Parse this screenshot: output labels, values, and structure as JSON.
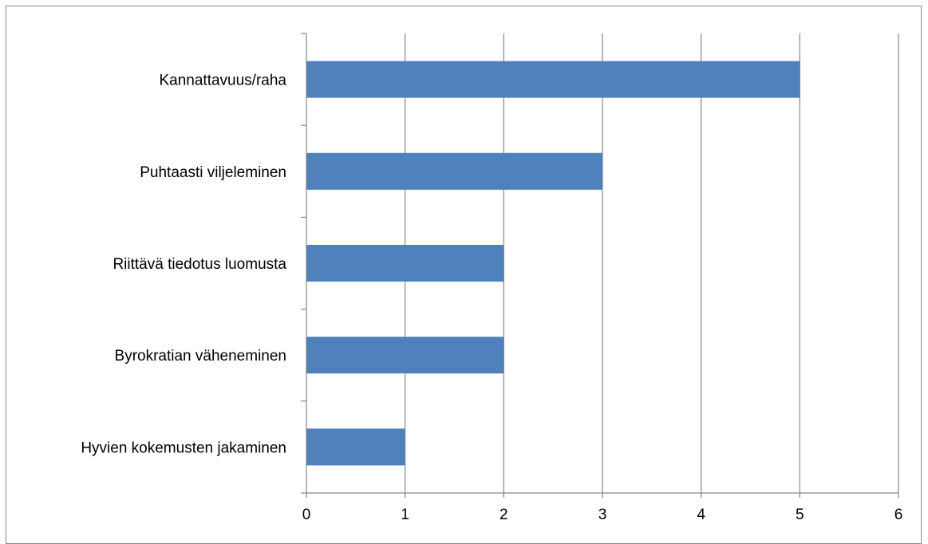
{
  "chart_data": {
    "type": "bar",
    "orientation": "horizontal",
    "categories": [
      "Kannattavuus/raha",
      "Puhtaasti viljeleminen",
      "Riittävä tiedotus luomusta",
      "Byrokratian väheneminen",
      "Hyvien kokemusten jakaminen"
    ],
    "values": [
      5,
      3,
      2,
      2,
      1
    ],
    "xlim": [
      0,
      6
    ],
    "xticks": [
      "0",
      "1",
      "2",
      "3",
      "4",
      "5",
      "6"
    ],
    "grid": true,
    "legend": "none",
    "bar_color": "#4f81bd",
    "grid_color": "#878787"
  }
}
